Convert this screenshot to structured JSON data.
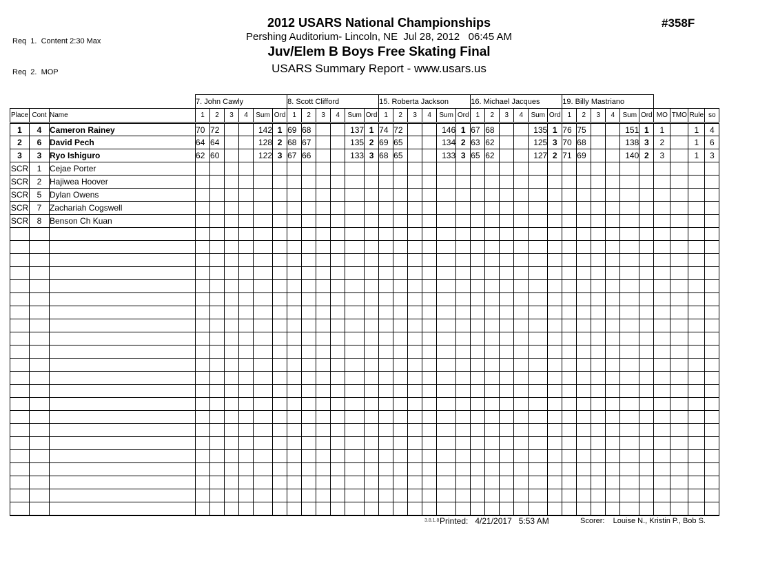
{
  "header": {
    "req_lines": [
      "Req  1.  Content 2:30 Max",
      "Req  2.  MOP"
    ],
    "title": "2012 USARS National Championships",
    "venue_line": "Pershing Auditorium- Lincoln, NE  Jul 28, 2012   06:45 AM",
    "event_title": "Juv/Elem B Boys Free Skating Final",
    "report_subtitle": "USARS Summary Report - www.usars.us",
    "event_number": "#358F"
  },
  "table": {
    "judges": [
      "7.   John Cawly",
      "8.   Scott Clifford",
      "15.   Roberta Jackson",
      "16.   Michael Jacques",
      "19.   Billy Mastriano"
    ],
    "left_headers": [
      "Place",
      "Cont",
      "Name"
    ],
    "judge_subheaders": [
      "1",
      "2",
      "3",
      "4",
      "Sum",
      "Ord"
    ],
    "right_headers": [
      "MO",
      "TMO",
      "Rule",
      "so"
    ],
    "rows": [
      {
        "place": "1",
        "cont": "4",
        "name": "Cameron Rainey",
        "placed": true,
        "judges": [
          {
            "scores": [
              "70",
              "72",
              "",
              ""
            ],
            "sum": "142",
            "ord": "1"
          },
          {
            "scores": [
              "69",
              "68",
              "",
              ""
            ],
            "sum": "137",
            "ord": "1"
          },
          {
            "scores": [
              "74",
              "72",
              "",
              ""
            ],
            "sum": "146",
            "ord": "1"
          },
          {
            "scores": [
              "67",
              "68",
              "",
              ""
            ],
            "sum": "135",
            "ord": "1"
          },
          {
            "scores": [
              "76",
              "75",
              "",
              ""
            ],
            "sum": "151",
            "ord": "1"
          }
        ],
        "mo": "1",
        "tmo": "",
        "rule": "1",
        "so": "4"
      },
      {
        "place": "2",
        "cont": "6",
        "name": "David Pech",
        "placed": true,
        "judges": [
          {
            "scores": [
              "64",
              "64",
              "",
              ""
            ],
            "sum": "128",
            "ord": "2"
          },
          {
            "scores": [
              "68",
              "67",
              "",
              ""
            ],
            "sum": "135",
            "ord": "2"
          },
          {
            "scores": [
              "69",
              "65",
              "",
              ""
            ],
            "sum": "134",
            "ord": "2"
          },
          {
            "scores": [
              "63",
              "62",
              "",
              ""
            ],
            "sum": "125",
            "ord": "3"
          },
          {
            "scores": [
              "70",
              "68",
              "",
              ""
            ],
            "sum": "138",
            "ord": "3"
          }
        ],
        "mo": "2",
        "tmo": "",
        "rule": "1",
        "so": "6"
      },
      {
        "place": "3",
        "cont": "3",
        "name": "Ryo Ishiguro",
        "placed": true,
        "judges": [
          {
            "scores": [
              "62",
              "60",
              "",
              ""
            ],
            "sum": "122",
            "ord": "3"
          },
          {
            "scores": [
              "67",
              "66",
              "",
              ""
            ],
            "sum": "133",
            "ord": "3"
          },
          {
            "scores": [
              "68",
              "65",
              "",
              ""
            ],
            "sum": "133",
            "ord": "3"
          },
          {
            "scores": [
              "65",
              "62",
              "",
              ""
            ],
            "sum": "127",
            "ord": "2"
          },
          {
            "scores": [
              "71",
              "69",
              "",
              ""
            ],
            "sum": "140",
            "ord": "2"
          }
        ],
        "mo": "3",
        "tmo": "",
        "rule": "1",
        "so": "3"
      },
      {
        "place": "SCR",
        "cont": "1",
        "name": "Cejae Porter",
        "placed": false,
        "judges": [],
        "mo": "",
        "tmo": "",
        "rule": "",
        "so": ""
      },
      {
        "place": "SCR",
        "cont": "2",
        "name": "Hajiwea Hoover",
        "placed": false,
        "judges": [],
        "mo": "",
        "tmo": "",
        "rule": "",
        "so": ""
      },
      {
        "place": "SCR",
        "cont": "5",
        "name": "Dylan Owens",
        "placed": false,
        "judges": [],
        "mo": "",
        "tmo": "",
        "rule": "",
        "so": ""
      },
      {
        "place": "SCR",
        "cont": "7",
        "name": "Zachariah Cogswell",
        "placed": false,
        "judges": [],
        "mo": "",
        "tmo": "",
        "rule": "",
        "so": ""
      },
      {
        "place": "SCR",
        "cont": "8",
        "name": "Benson Ch Kuan",
        "placed": false,
        "judges": [],
        "mo": "",
        "tmo": "",
        "rule": "",
        "so": ""
      }
    ],
    "empty_row_count": 22
  },
  "footer": {
    "version": "3.8.1.8",
    "printed_line": "Printed:   4/21/2017   5:53 AM",
    "scorer_line": "Scorer:    Louise N., Kristin P., Bob S."
  }
}
